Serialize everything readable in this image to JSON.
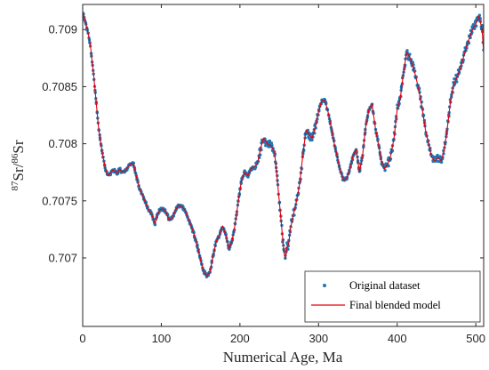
{
  "chart_data": {
    "type": "scatter",
    "xlabel": "Numerical Age, Ma",
    "ylabel_parts": {
      "sup1": "87",
      "base1": "Sr/",
      "sup2": "86",
      "base2": "Sr"
    },
    "xlim": [
      0,
      510
    ],
    "ylim": [
      0.7064,
      0.70922
    ],
    "xticks": [
      0,
      100,
      200,
      300,
      400,
      500
    ],
    "yticks": [
      0.707,
      0.7075,
      0.708,
      0.7085,
      0.709
    ],
    "ytick_labels": [
      "0.707",
      "0.7075",
      "0.708",
      "0.7085",
      "0.709"
    ],
    "grid": false,
    "legend_position": "bottom-right",
    "colors": {
      "scatter": "#1f77b4",
      "line": "#e8000b",
      "axes": "#262626"
    },
    "series": [
      {
        "name": "Original dataset",
        "kind": "scatter"
      },
      {
        "name": "Final blended model",
        "kind": "line",
        "x": [
          0,
          2,
          4,
          6,
          8,
          10,
          12,
          14,
          16,
          18,
          20,
          23,
          26,
          29,
          32,
          35,
          38,
          41,
          44,
          47,
          50,
          54,
          58,
          62,
          65,
          68,
          72,
          76,
          80,
          84,
          88,
          92,
          95,
          98,
          102,
          106,
          110,
          114,
          118,
          122,
          126,
          130,
          134,
          138,
          142,
          146,
          150,
          154,
          158,
          162,
          166,
          170,
          174,
          178,
          182,
          186,
          190,
          194,
          198,
          202,
          206,
          210,
          214,
          218,
          222,
          226,
          230,
          235,
          240,
          244,
          248,
          252,
          256,
          258,
          260,
          262,
          264,
          268,
          272,
          276,
          280,
          284,
          288,
          292,
          296,
          300,
          304,
          308,
          312,
          316,
          320,
          324,
          328,
          332,
          336,
          340,
          344,
          348,
          352,
          356,
          360,
          364,
          368,
          372,
          376,
          380,
          384,
          388,
          392,
          396,
          400,
          404,
          408,
          412,
          416,
          420,
          424,
          428,
          432,
          436,
          440,
          444,
          448,
          452,
          456,
          460,
          464,
          468,
          472,
          476,
          480,
          484,
          488,
          492,
          496,
          500,
          504,
          508,
          510
        ],
        "y": [
          0.70915,
          0.7091,
          0.70905,
          0.709,
          0.70893,
          0.70885,
          0.70872,
          0.7086,
          0.70845,
          0.7083,
          0.70815,
          0.708,
          0.70788,
          0.70778,
          0.70772,
          0.70774,
          0.70777,
          0.70776,
          0.70774,
          0.70778,
          0.70775,
          0.70776,
          0.7078,
          0.70783,
          0.70782,
          0.70772,
          0.70762,
          0.70755,
          0.70748,
          0.70742,
          0.70738,
          0.7073,
          0.70738,
          0.70742,
          0.70743,
          0.7074,
          0.70733,
          0.70735,
          0.70742,
          0.70746,
          0.70745,
          0.70742,
          0.70735,
          0.70728,
          0.7072,
          0.7071,
          0.70698,
          0.70688,
          0.70684,
          0.70688,
          0.70702,
          0.70715,
          0.7072,
          0.70728,
          0.7072,
          0.70708,
          0.70715,
          0.7073,
          0.7075,
          0.70768,
          0.70775,
          0.70772,
          0.70778,
          0.7078,
          0.70782,
          0.70795,
          0.70805,
          0.708,
          0.70798,
          0.70793,
          0.70765,
          0.70735,
          0.70705,
          0.707,
          0.7071,
          0.70712,
          0.70725,
          0.70738,
          0.7075,
          0.70765,
          0.7079,
          0.70812,
          0.70808,
          0.70805,
          0.70815,
          0.70828,
          0.70838,
          0.70838,
          0.70828,
          0.70815,
          0.708,
          0.70788,
          0.70775,
          0.70768,
          0.7077,
          0.70778,
          0.7079,
          0.70795,
          0.70775,
          0.7079,
          0.70815,
          0.7083,
          0.70835,
          0.70815,
          0.708,
          0.70785,
          0.70778,
          0.70782,
          0.7079,
          0.70805,
          0.7083,
          0.7084,
          0.70862,
          0.7088,
          0.70876,
          0.70868,
          0.70858,
          0.70845,
          0.7083,
          0.70812,
          0.708,
          0.70788,
          0.70785,
          0.70788,
          0.70785,
          0.70795,
          0.70815,
          0.70838,
          0.70852,
          0.70858,
          0.70865,
          0.70875,
          0.70885,
          0.70893,
          0.709,
          0.70905,
          0.70912,
          0.709,
          0.7088
        ]
      }
    ]
  }
}
